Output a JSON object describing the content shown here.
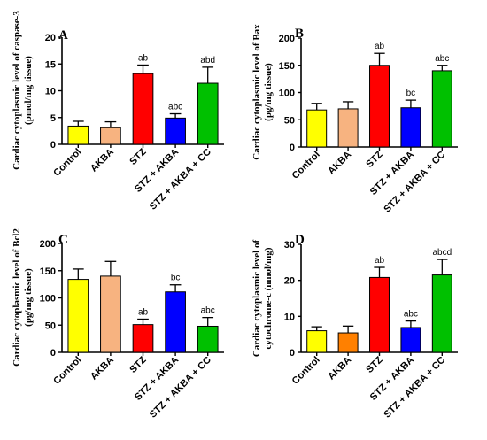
{
  "chart_data": [
    {
      "type": "bar",
      "panel": "A",
      "ylabel": [
        "Cardiac cytoplasmic level of caspase-3",
        "(pmol/mg tissue)"
      ],
      "ylim": [
        0,
        20
      ],
      "yticks": [
        0,
        5,
        10,
        15,
        20
      ],
      "categories": [
        "Control",
        "AKBA",
        "STZ",
        "STZ + AKBA",
        "STZ + AKBA + CC"
      ],
      "values": [
        3.4,
        3.1,
        13.2,
        4.9,
        11.4
      ],
      "errors": [
        0.9,
        1.1,
        1.6,
        0.8,
        3.0
      ],
      "annotations": [
        "",
        "",
        "ab",
        "abc",
        "abd"
      ],
      "colors": [
        "#ffff00",
        "#f7b380",
        "#ff0000",
        "#0000ff",
        "#00c000"
      ]
    },
    {
      "type": "bar",
      "panel": "B",
      "ylabel": [
        "Cardiac cytoplasmic level of Bax",
        "(pg/mg tissue)"
      ],
      "ylim": [
        0,
        200
      ],
      "yticks": [
        0,
        50,
        100,
        150,
        200
      ],
      "categories": [
        "Control",
        "AKBA",
        "STZ",
        "STZ + AKBA",
        "STZ + AKBA + CC"
      ],
      "values": [
        68,
        70,
        150,
        72,
        140
      ],
      "errors": [
        12,
        13,
        22,
        14,
        10
      ],
      "annotations": [
        "",
        "",
        "ab",
        "bc",
        "abc"
      ],
      "colors": [
        "#ffff00",
        "#f7b380",
        "#ff0000",
        "#0000ff",
        "#00c000"
      ]
    },
    {
      "type": "bar",
      "panel": "C",
      "ylabel": [
        "Cardiac cytoplasmic level of Bcl2",
        "(pg/mg tissue)"
      ],
      "ylim": [
        0,
        200
      ],
      "yticks": [
        0,
        50,
        100,
        150,
        200
      ],
      "categories": [
        "Control",
        "AKBA",
        "STZ",
        "STZ + AKBA",
        "STZ + AKBA + CC"
      ],
      "values": [
        134,
        140,
        51,
        111,
        48
      ],
      "errors": [
        19,
        27,
        10,
        13,
        16
      ],
      "annotations": [
        "",
        "",
        "ab",
        "bc",
        "abc"
      ],
      "colors": [
        "#ffff00",
        "#f7b380",
        "#ff0000",
        "#0000ff",
        "#00c000"
      ]
    },
    {
      "type": "bar",
      "panel": "D",
      "ylabel": [
        "Cardiac cytoplasmic level of",
        "cytochrome-c (nmol/mg)"
      ],
      "ylim": [
        0,
        30
      ],
      "yticks": [
        0,
        10,
        20,
        30
      ],
      "categories": [
        "Control",
        "AKBA",
        "STZ",
        "STZ + AKBA",
        "STZ + AKBA + CC"
      ],
      "values": [
        6.0,
        5.4,
        20.8,
        6.9,
        21.5
      ],
      "errors": [
        1.1,
        1.9,
        2.8,
        1.8,
        4.3
      ],
      "annotations": [
        "",
        "",
        "ab",
        "abc",
        "abcd"
      ],
      "colors": [
        "#ffff00",
        "#ff8000",
        "#ff0000",
        "#0000ff",
        "#00c000"
      ]
    }
  ]
}
